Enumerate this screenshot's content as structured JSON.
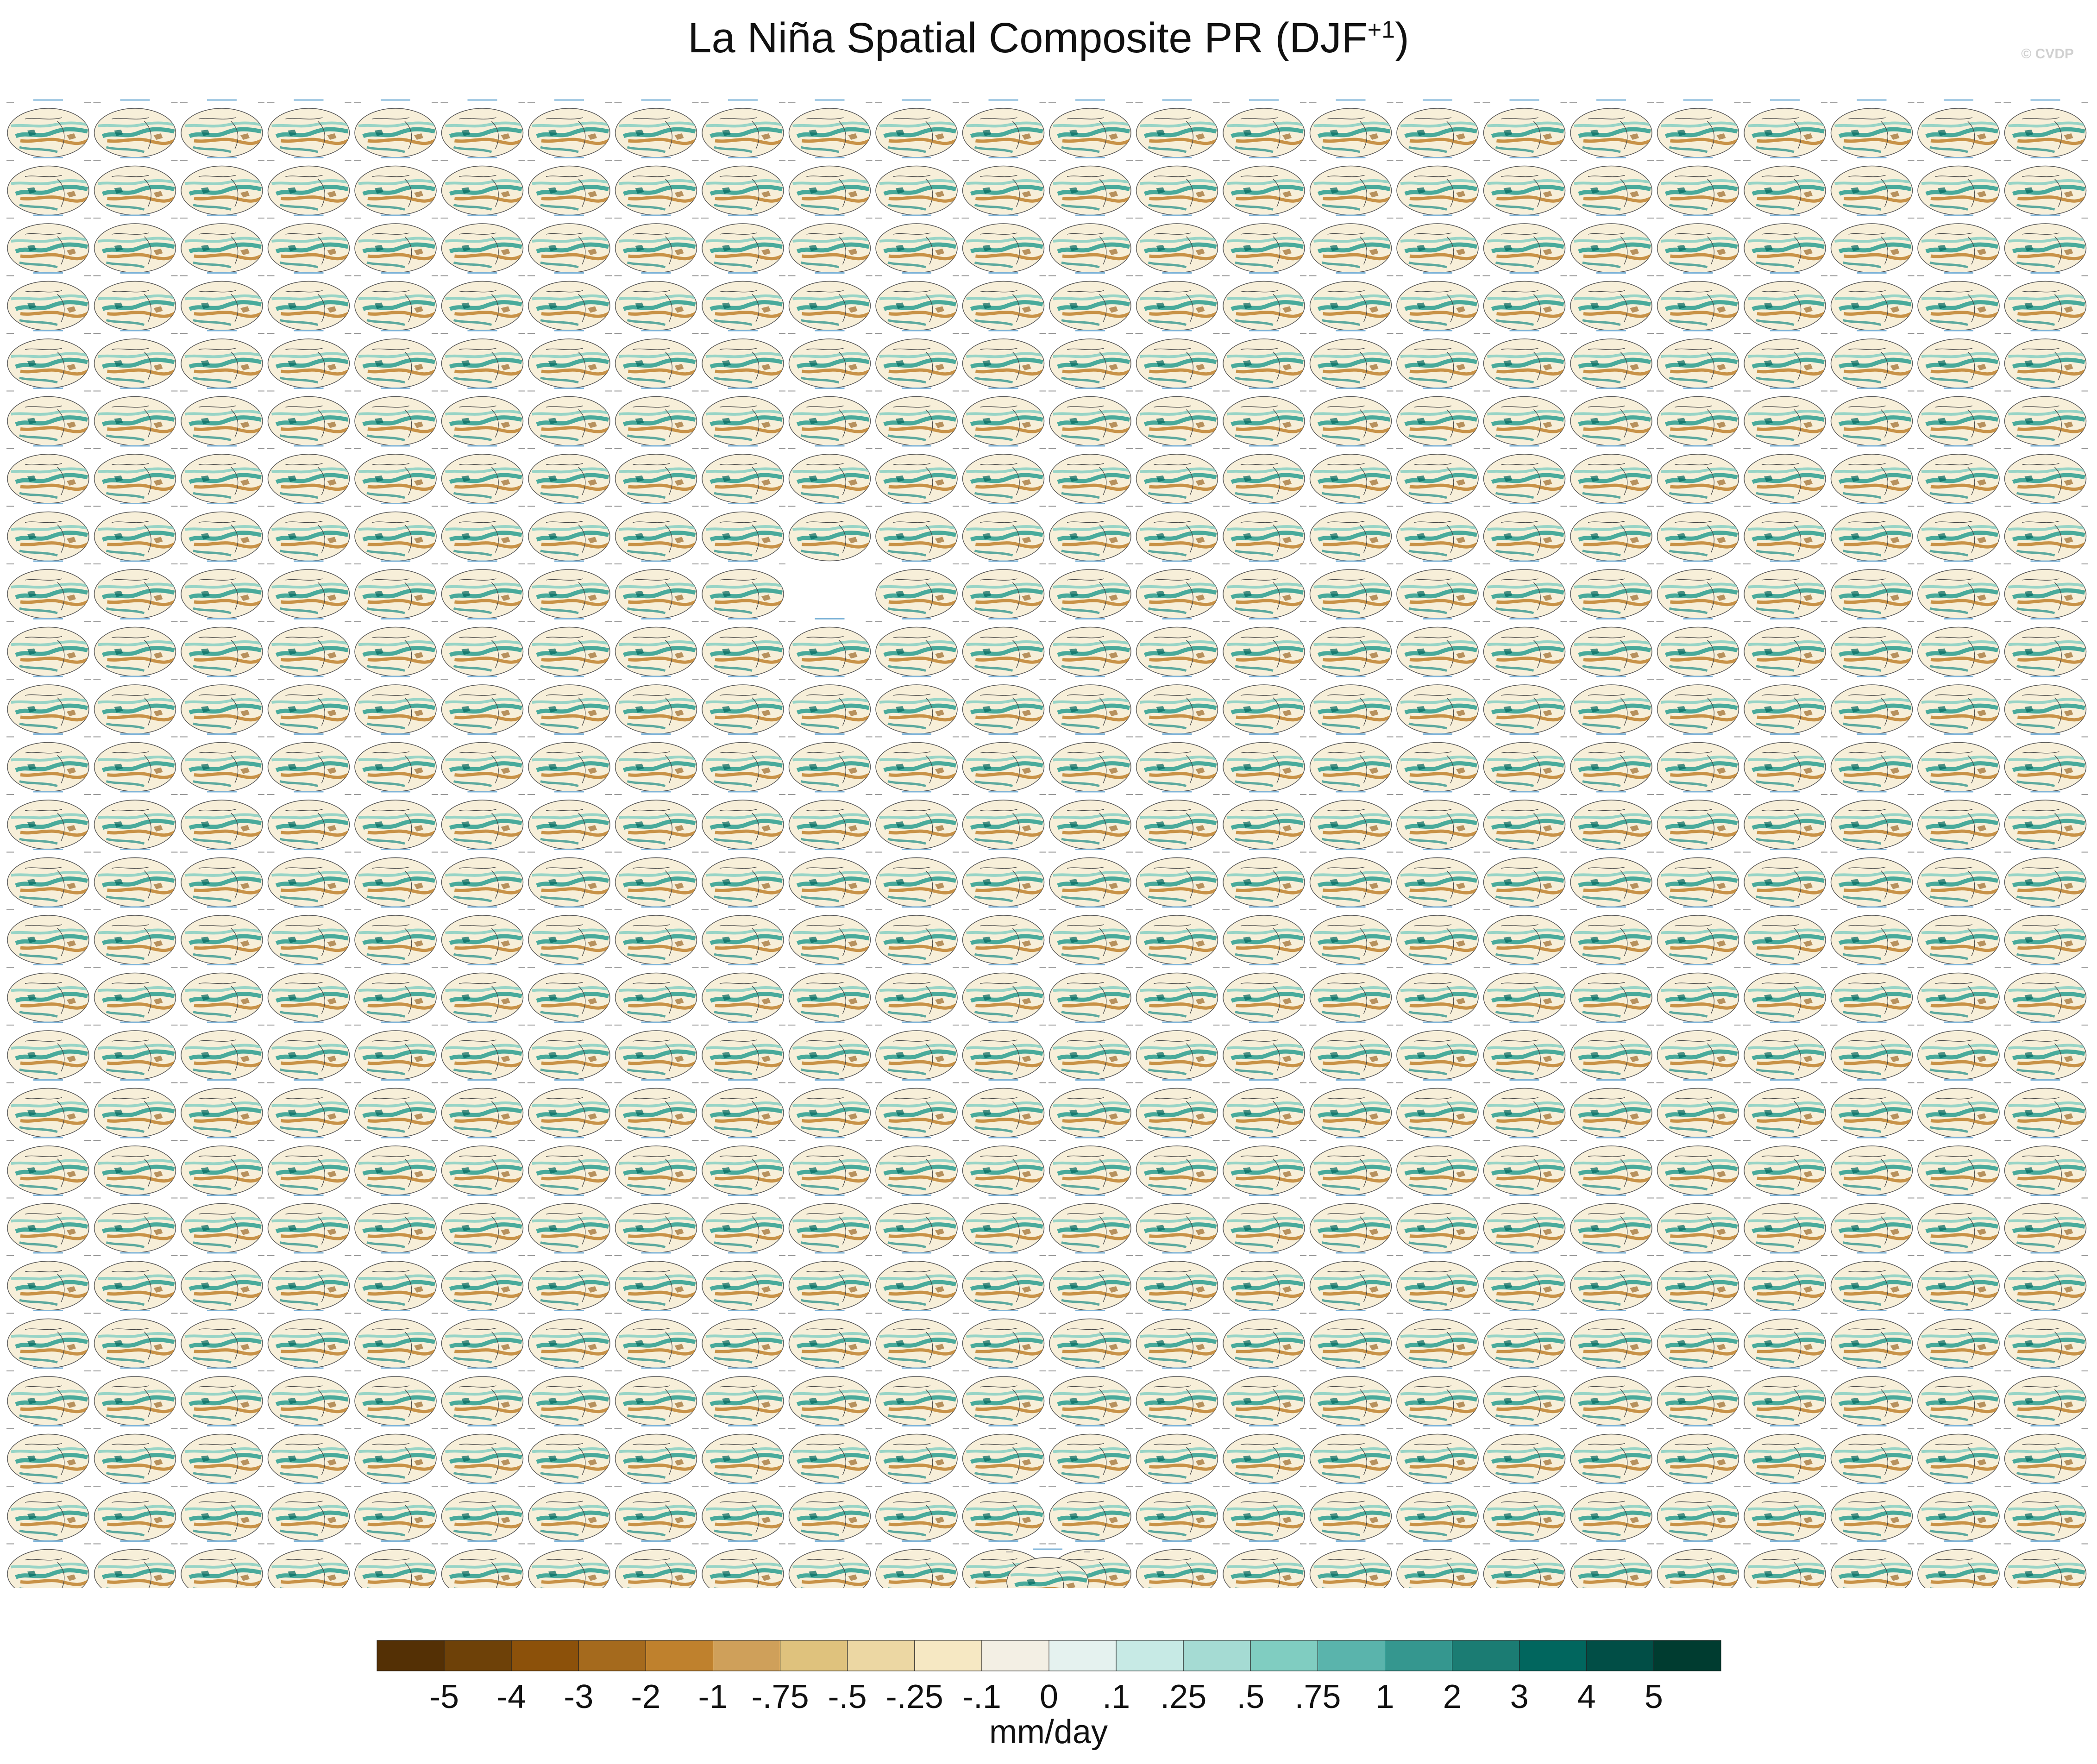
{
  "chart_data": {
    "type": "heatmap",
    "title": "La Niña Spatial Composite PR (DJF",
    "title_superscript": "+1",
    "watermark": "© CVDP",
    "panels": {
      "rows": 26,
      "columns": 24,
      "empty_cells": [
        [
          8,
          9
        ]
      ],
      "trailing_single_panel": true,
      "description_field": "PR composite"
    },
    "colorbar": {
      "units": "mm/day",
      "tick_labels": [
        "-5",
        "-4",
        "-3",
        "-2",
        "-1",
        "-.75",
        "-.5",
        "-.25",
        "-.1",
        "0",
        ".1",
        ".25",
        ".5",
        ".75",
        "1",
        "2",
        "3",
        "4",
        "5"
      ],
      "colors": [
        "#543005",
        "#6e4108",
        "#8c510a",
        "#a56a1d",
        "#bf812d",
        "#cfa05a",
        "#dfc27d",
        "#ecd7a3",
        "#f6e8c3",
        "#f3efe4",
        "#e5f2ef",
        "#c7eae5",
        "#a5dbd3",
        "#80cdc1",
        "#5ab4ac",
        "#35978f",
        "#1b7c73",
        "#01665e",
        "#014e46",
        "#003c30"
      ]
    }
  }
}
